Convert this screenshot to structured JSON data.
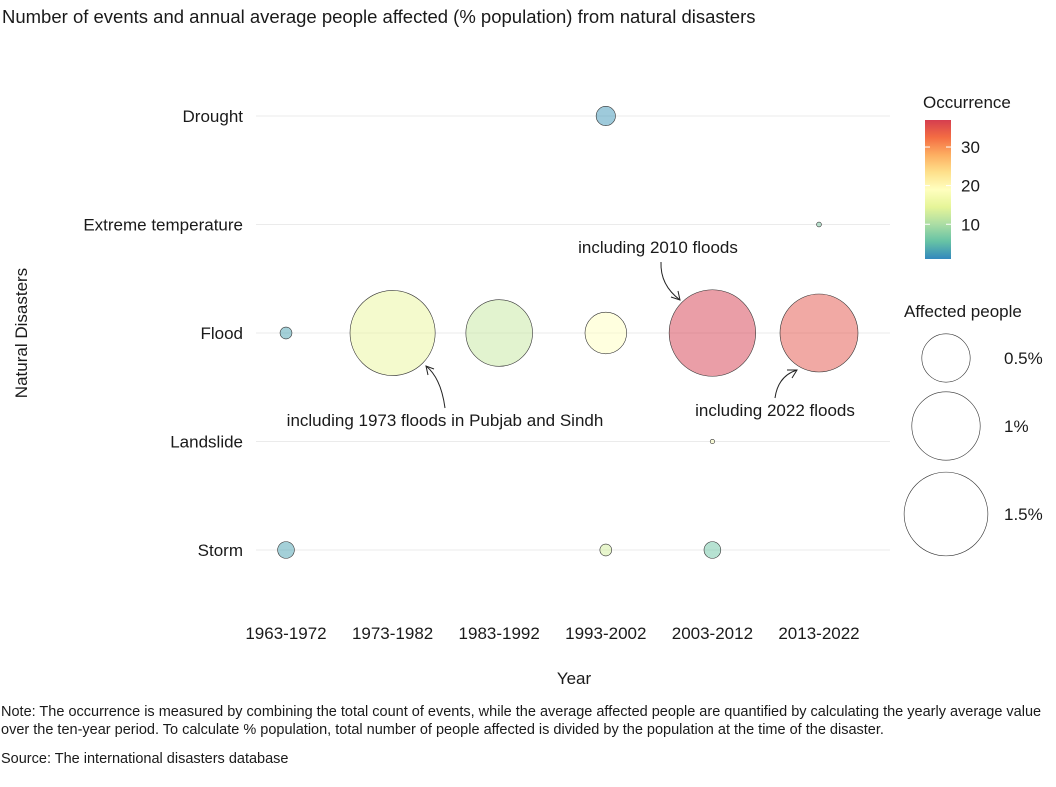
{
  "title": "Number of events and annual average people affected (% population) from natural disasters",
  "note": "Note: The occurrence is measured by combining the total count of events, while the average affected people are quantified by calculating the yearly average value over the ten-year period. To calculate % population, total number of people affected is divided by the population at the time of the disaster.",
  "source": "Source: The international disasters database",
  "colors": {
    "scale": [
      "#3288bd",
      "#66c2a5",
      "#abdda4",
      "#e6f598",
      "#ffffbf",
      "#fee08b",
      "#fdae61",
      "#f46d43",
      "#d53e4f"
    ],
    "grid": "#ebebeb",
    "outline": "#333333"
  },
  "chart_data": {
    "type": "scatter",
    "title": "Number of events and annual average people affected (% population) from natural disasters",
    "xlabel": "Year",
    "ylabel": "Natural Disasters",
    "x_categories": [
      "1963-1972",
      "1973-1982",
      "1983-1992",
      "1993-2002",
      "2003-2012",
      "2013-2022"
    ],
    "y_categories": [
      "Drought",
      "Extreme temperature",
      "Flood",
      "Landslide",
      "Storm"
    ],
    "color_legend": {
      "title": "Occurrence",
      "range": [
        1,
        37
      ],
      "ticks": [
        10,
        20,
        30
      ]
    },
    "size_legend": {
      "title": "Affected people",
      "values": [
        0.5,
        1,
        1.5
      ],
      "labels": [
        "0.5%",
        "1%",
        "1.5%"
      ]
    },
    "points": [
      {
        "x": "1993-2002",
        "y": "Drought",
        "occurrence": 2,
        "affected": 0.08
      },
      {
        "x": "2013-2022",
        "y": "Extreme temperature",
        "occurrence": 7,
        "affected": 0.005
      },
      {
        "x": "1963-1972",
        "y": "Flood",
        "occurrence": 3,
        "affected": 0.03
      },
      {
        "x": "1973-1982",
        "y": "Flood",
        "occurrence": 15,
        "affected": 1.55
      },
      {
        "x": "1983-1992",
        "y": "Flood",
        "occurrence": 12,
        "affected": 0.95
      },
      {
        "x": "1993-2002",
        "y": "Flood",
        "occurrence": 19,
        "affected": 0.37
      },
      {
        "x": "2003-2012",
        "y": "Flood",
        "occurrence": 37,
        "affected": 1.6
      },
      {
        "x": "2013-2022",
        "y": "Flood",
        "occurrence": 35,
        "affected": 1.3
      },
      {
        "x": "2003-2012",
        "y": "Landslide",
        "occurrence": 18,
        "affected": 0.002
      },
      {
        "x": "1963-1972",
        "y": "Storm",
        "occurrence": 3,
        "affected": 0.06
      },
      {
        "x": "1993-2002",
        "y": "Storm",
        "occurrence": 13,
        "affected": 0.03
      },
      {
        "x": "2003-2012",
        "y": "Storm",
        "occurrence": 6,
        "affected": 0.06
      }
    ],
    "annotations": [
      {
        "text": "including 2010 floods",
        "x": "2003-2012",
        "y": "Flood"
      },
      {
        "text": "including 1973 floods in Pubjab and Sindh",
        "x": "1973-1982",
        "y": "Flood"
      },
      {
        "text": "including 2022 floods",
        "x": "2013-2022",
        "y": "Flood"
      }
    ]
  }
}
